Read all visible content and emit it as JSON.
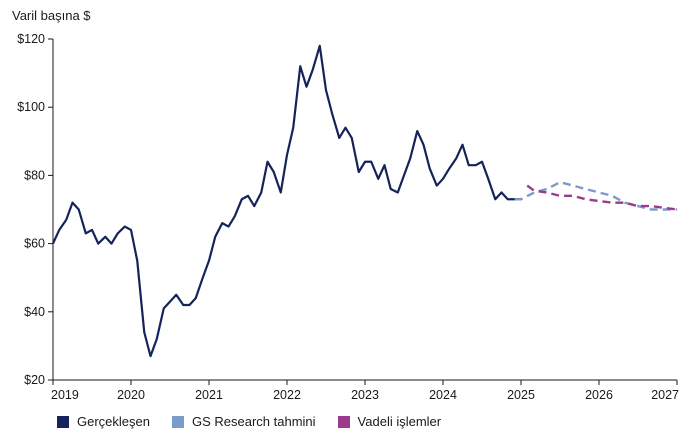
{
  "chart_data": {
    "type": "line",
    "ylabel": "Varil başına $",
    "ylim": [
      20,
      120
    ],
    "xlim": [
      2019,
      2027
    ],
    "y_ticks": [
      "$20",
      "$40",
      "$60",
      "$80",
      "$100",
      "$120"
    ],
    "y_tick_values": [
      20,
      40,
      60,
      80,
      100,
      120
    ],
    "x_ticks": [
      "2019",
      "2020",
      "2021",
      "2022",
      "2023",
      "2024",
      "2025",
      "2026",
      "2027"
    ],
    "x_tick_values": [
      2019,
      2020,
      2021,
      2022,
      2023,
      2024,
      2025,
      2026,
      2027
    ],
    "grid": false,
    "legend_position": "bottom",
    "series": [
      {
        "name": "Gerçekleşen",
        "color": "#14245a",
        "style": "solid",
        "x": [
          2019.0,
          2019.08,
          2019.17,
          2019.25,
          2019.33,
          2019.42,
          2019.5,
          2019.58,
          2019.67,
          2019.75,
          2019.83,
          2019.92,
          2020.0,
          2020.08,
          2020.17,
          2020.25,
          2020.33,
          2020.42,
          2020.5,
          2020.58,
          2020.67,
          2020.75,
          2020.83,
          2020.92,
          2021.0,
          2021.08,
          2021.17,
          2021.25,
          2021.33,
          2021.42,
          2021.5,
          2021.58,
          2021.67,
          2021.75,
          2021.83,
          2021.92,
          2022.0,
          2022.08,
          2022.17,
          2022.25,
          2022.33,
          2022.42,
          2022.5,
          2022.58,
          2022.67,
          2022.75,
          2022.83,
          2022.92,
          2023.0,
          2023.08,
          2023.17,
          2023.25,
          2023.33,
          2023.42,
          2023.5,
          2023.58,
          2023.67,
          2023.75,
          2023.83,
          2023.92,
          2024.0,
          2024.08,
          2024.17,
          2024.25,
          2024.33,
          2024.42,
          2024.5,
          2024.58,
          2024.67,
          2024.75,
          2024.83,
          2024.92,
          2025.0
        ],
        "y": [
          60,
          64,
          67,
          72,
          70,
          63,
          64,
          60,
          62,
          60,
          63,
          65,
          64,
          55,
          34,
          27,
          32,
          41,
          43,
          45,
          42,
          42,
          44,
          50,
          55,
          62,
          66,
          65,
          68,
          73,
          74,
          71,
          75,
          84,
          81,
          75,
          86,
          94,
          112,
          106,
          111,
          118,
          105,
          98,
          91,
          94,
          91,
          81,
          84,
          84,
          79,
          83,
          76,
          75,
          80,
          85,
          93,
          89,
          82,
          77,
          79,
          82,
          85,
          89,
          83,
          83,
          84,
          79,
          73,
          75,
          73,
          73,
          73
        ]
      },
      {
        "name": "GS Research tahmini",
        "color": "#7b9cc9",
        "style": "dashed",
        "x": [
          2024.92,
          2025.0,
          2025.17,
          2025.33,
          2025.5,
          2025.67,
          2025.83,
          2026.0,
          2026.17,
          2026.33,
          2026.5,
          2026.67,
          2026.83,
          2027.0
        ],
        "y": [
          73,
          73,
          75,
          76,
          78,
          77,
          76,
          75,
          74,
          72,
          71,
          70,
          70,
          70
        ]
      },
      {
        "name": "Vadeli işlemler",
        "color": "#9b3a8d",
        "style": "dashed",
        "x": [
          2025.08,
          2025.17,
          2025.33,
          2025.5,
          2025.67,
          2025.83,
          2026.0,
          2026.17,
          2026.33,
          2026.5,
          2026.67,
          2026.83,
          2027.0
        ],
        "y": [
          77,
          75.5,
          75,
          74,
          74,
          73,
          72.5,
          72,
          72,
          71,
          71,
          70.5,
          70
        ]
      }
    ]
  }
}
